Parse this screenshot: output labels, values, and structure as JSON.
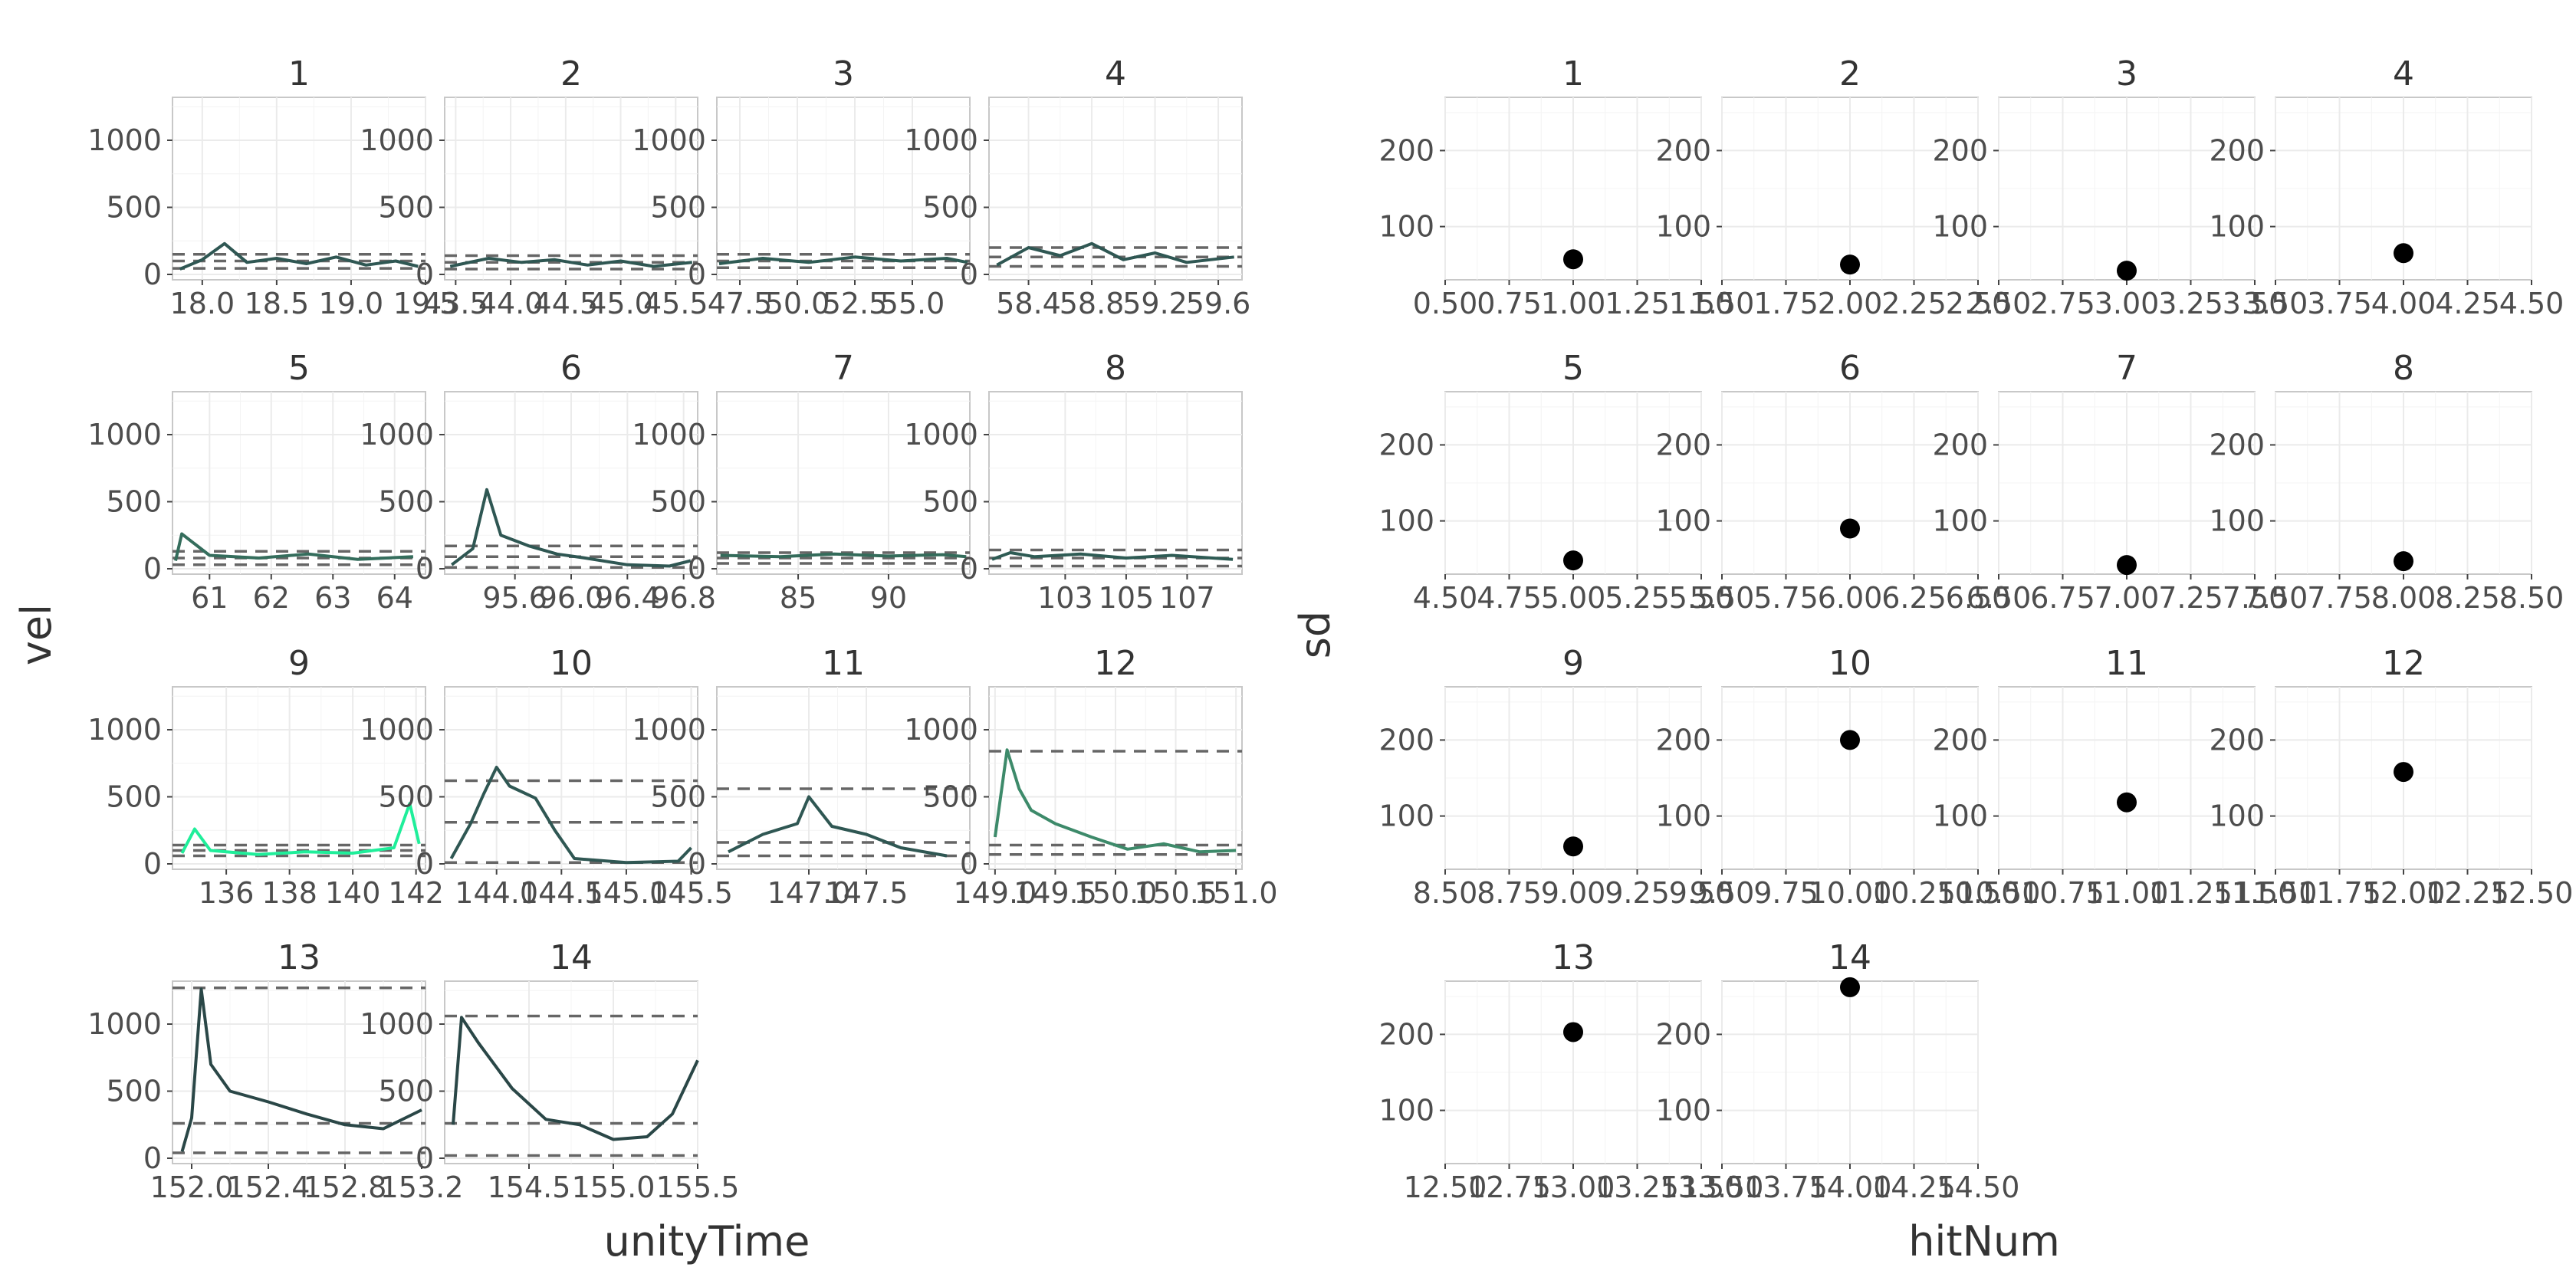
{
  "chart_data": [
    {
      "type": "line",
      "facet_by": "hitNum",
      "xlabel": "unityTime",
      "ylabel": "vel",
      "y_scale": "shared",
      "x_scale": "free",
      "ylim": [
        -40,
        1320
      ],
      "y_ticks": [
        0,
        500,
        1000
      ],
      "reference_lines": "dashed horizontal lines at mean, mean + sd and mean - sd",
      "grid": true,
      "colors": {
        "line_low": "#2a4747",
        "line_high": "#00ff99",
        "reference_line": "#666666"
      },
      "panels": [
        {
          "label": "1",
          "xlim": [
            17.8,
            19.5
          ],
          "x_ticks": [
            18.0,
            18.5,
            19.0,
            19.5
          ],
          "x_tick_labels": [
            "18.0",
            "18.5",
            "19.0",
            "19.5"
          ],
          "hlines": [
            45,
            100,
            150
          ],
          "line_color": "#2f5753",
          "x": [
            17.85,
            18.0,
            18.15,
            18.3,
            18.5,
            18.7,
            18.9,
            19.1,
            19.3,
            19.45
          ],
          "y": [
            40,
            110,
            230,
            90,
            120,
            80,
            130,
            70,
            100,
            60
          ]
        },
        {
          "label": "2",
          "xlim": [
            43.4,
            45.7
          ],
          "x_ticks": [
            43.5,
            44.0,
            44.5,
            45.0,
            45.5
          ],
          "x_tick_labels": [
            "43.5",
            "44.0",
            "44.5",
            "45.0",
            "45.5"
          ],
          "hlines": [
            40,
            90,
            140
          ],
          "line_color": "#2f5753",
          "x": [
            43.45,
            43.8,
            44.1,
            44.4,
            44.7,
            45.0,
            45.3,
            45.65
          ],
          "y": [
            60,
            120,
            90,
            110,
            70,
            100,
            60,
            90
          ]
        },
        {
          "label": "3",
          "xlim": [
            46.5,
            57.5
          ],
          "x_ticks": [
            47.5,
            50.0,
            52.5,
            55.0
          ],
          "x_tick_labels": [
            "47.5",
            "50.0",
            "52.5",
            "55.0"
          ],
          "hlines": [
            50,
            100,
            150
          ],
          "line_color": "#2e5b54",
          "x": [
            46.6,
            48.5,
            50.5,
            52.5,
            54.5,
            56.5,
            57.4
          ],
          "y": [
            80,
            120,
            90,
            130,
            100,
            120,
            90
          ]
        },
        {
          "label": "4",
          "xlim": [
            58.15,
            59.75
          ],
          "x_ticks": [
            58.4,
            58.8,
            59.2,
            59.6
          ],
          "x_tick_labels": [
            "58.4",
            "58.8",
            "59.2",
            "59.6"
          ],
          "hlines": [
            60,
            130,
            200
          ],
          "line_color": "#2f5753",
          "x": [
            58.2,
            58.4,
            58.6,
            58.8,
            59.0,
            59.2,
            59.4,
            59.7
          ],
          "y": [
            70,
            200,
            140,
            230,
            110,
            160,
            90,
            130
          ]
        },
        {
          "label": "5",
          "xlim": [
            60.4,
            64.5
          ],
          "x_ticks": [
            61,
            62,
            63,
            64
          ],
          "x_tick_labels": [
            "61",
            "62",
            "63",
            "64"
          ],
          "hlines": [
            30,
            80,
            130
          ],
          "line_color": "#346d5c",
          "x": [
            60.45,
            60.55,
            61.0,
            61.8,
            62.6,
            63.4,
            64.3
          ],
          "y": [
            60,
            260,
            100,
            80,
            110,
            70,
            90
          ]
        },
        {
          "label": "6",
          "xlim": [
            95.1,
            96.9
          ],
          "x_ticks": [
            95.6,
            96.0,
            96.4,
            96.8
          ],
          "x_tick_labels": [
            "95.6",
            "96.0",
            "96.4",
            "96.8"
          ],
          "hlines": [
            10,
            90,
            170
          ],
          "line_color": "#2f5753",
          "x": [
            95.15,
            95.3,
            95.4,
            95.5,
            95.7,
            95.9,
            96.1,
            96.4,
            96.7,
            96.85
          ],
          "y": [
            30,
            150,
            590,
            250,
            170,
            110,
            80,
            30,
            20,
            60
          ]
        },
        {
          "label": "7",
          "xlim": [
            80.5,
            94.5
          ],
          "x_ticks": [
            85,
            90
          ],
          "x_tick_labels": [
            "85",
            "90"
          ],
          "hlines": [
            40,
            80,
            120
          ],
          "line_color": "#336b5a",
          "x": [
            80.7,
            84.0,
            87.0,
            90.0,
            93.0,
            94.3
          ],
          "y": [
            100,
            90,
            110,
            95,
            105,
            90
          ]
        },
        {
          "label": "8",
          "xlim": [
            100.5,
            108.8
          ],
          "x_ticks": [
            103,
            105,
            107
          ],
          "x_tick_labels": [
            "103",
            "105",
            "107"
          ],
          "hlines": [
            20,
            80,
            140
          ],
          "line_color": "#2e5b54",
          "x": [
            100.6,
            101.2,
            102.0,
            103.5,
            105.0,
            106.5,
            108.5
          ],
          "y": [
            70,
            120,
            90,
            110,
            80,
            100,
            70
          ]
        },
        {
          "label": "9",
          "xlim": [
            134.3,
            142.3
          ],
          "x_ticks": [
            136,
            138,
            140,
            142
          ],
          "x_tick_labels": [
            "136",
            "138",
            "140",
            "142"
          ],
          "hlines": [
            60,
            100,
            140
          ],
          "line_color": "#1fee9a",
          "x": [
            134.6,
            135.0,
            135.5,
            137.0,
            138.5,
            140.0,
            141.3,
            141.8,
            142.1
          ],
          "y": [
            80,
            260,
            100,
            70,
            90,
            80,
            120,
            450,
            150
          ]
        },
        {
          "label": "10",
          "xlim": [
            143.6,
            145.55
          ],
          "x_ticks": [
            144.0,
            144.5,
            145.0,
            145.5
          ],
          "x_tick_labels": [
            "144.0",
            "144.5",
            "145.0",
            "145.5"
          ],
          "hlines": [
            10,
            310,
            620
          ],
          "line_color": "#2f5753",
          "x": [
            143.65,
            143.8,
            143.9,
            144.0,
            144.1,
            144.3,
            144.45,
            144.6,
            145.0,
            145.4,
            145.5
          ],
          "y": [
            40,
            300,
            520,
            720,
            580,
            490,
            250,
            40,
            10,
            20,
            120
          ]
        },
        {
          "label": "11",
          "xlim": [
            146.2,
            148.4
          ],
          "x_ticks": [
            147.0,
            147.5
          ],
          "x_tick_labels": [
            "147.0",
            "147.5"
          ],
          "hlines": [
            60,
            160,
            560
          ],
          "line_color": "#2f5753",
          "x": [
            146.3,
            146.6,
            146.9,
            147.0,
            147.2,
            147.5,
            147.8,
            148.2
          ],
          "y": [
            90,
            220,
            300,
            500,
            280,
            220,
            120,
            60
          ]
        },
        {
          "label": "12",
          "xlim": [
            148.95,
            151.05
          ],
          "x_ticks": [
            149.0,
            149.5,
            150.0,
            150.5,
            151.0
          ],
          "x_tick_labels": [
            "149.0",
            "149.5",
            "150.0",
            "150.5",
            "151.0"
          ],
          "hlines": [
            70,
            140,
            840
          ],
          "line_color": "#3d8a6a",
          "x": [
            149.0,
            149.1,
            149.2,
            149.3,
            149.5,
            149.8,
            150.1,
            150.4,
            150.7,
            151.0
          ],
          "y": [
            200,
            850,
            560,
            400,
            300,
            200,
            110,
            150,
            90,
            100
          ]
        },
        {
          "label": "13",
          "xlim": [
            151.9,
            153.22
          ],
          "x_ticks": [
            152.0,
            152.4,
            152.8,
            153.2
          ],
          "x_tick_labels": [
            "152.0",
            "152.4",
            "152.8",
            "153.2"
          ],
          "hlines": [
            40,
            260,
            1270
          ],
          "line_color": "#2a4747",
          "x": [
            151.95,
            152.0,
            152.05,
            152.1,
            152.2,
            152.4,
            152.6,
            152.8,
            153.0,
            153.2
          ],
          "y": [
            50,
            300,
            1260,
            700,
            500,
            420,
            330,
            250,
            220,
            360
          ]
        },
        {
          "label": "14",
          "xlim": [
            154.0,
            155.5
          ],
          "x_ticks": [
            154.5,
            155.0,
            155.5
          ],
          "x_tick_labels": [
            "154.5",
            "155.0",
            "155.5"
          ],
          "hlines": [
            20,
            260,
            1060
          ],
          "line_color": "#2a4747",
          "x": [
            154.05,
            154.1,
            154.2,
            154.4,
            154.6,
            154.8,
            155.0,
            155.2,
            155.35,
            155.5
          ],
          "y": [
            250,
            1050,
            860,
            520,
            290,
            250,
            140,
            160,
            330,
            730
          ]
        }
      ]
    },
    {
      "type": "scatter",
      "facet_by": "hitNum",
      "xlabel": "hitNum",
      "ylabel": "sd",
      "y_scale": "shared",
      "x_scale": "free",
      "ylim": [
        30,
        270
      ],
      "y_ticks": [
        100,
        200
      ],
      "grid": true,
      "colors": {
        "point": "#000000"
      },
      "panels": [
        {
          "label": "1",
          "x": 1,
          "y": 57,
          "xlim": [
            0.5,
            1.5
          ],
          "x_ticks": [
            0.5,
            0.75,
            1.0,
            1.25,
            1.5
          ],
          "x_tick_labels": [
            "0.50",
            "0.75",
            "1.00",
            "1.25",
            "1.50"
          ]
        },
        {
          "label": "2",
          "x": 2,
          "y": 50,
          "xlim": [
            1.5,
            2.5
          ],
          "x_ticks": [
            1.5,
            1.75,
            2.0,
            2.25,
            2.5
          ],
          "x_tick_labels": [
            "1.50",
            "1.75",
            "2.00",
            "2.25",
            "2.50"
          ]
        },
        {
          "label": "3",
          "x": 3,
          "y": 42,
          "xlim": [
            2.5,
            3.5
          ],
          "x_ticks": [
            2.5,
            2.75,
            3.0,
            3.25,
            3.5
          ],
          "x_tick_labels": [
            "2.50",
            "2.75",
            "3.00",
            "3.25",
            "3.50"
          ]
        },
        {
          "label": "4",
          "x": 4,
          "y": 65,
          "xlim": [
            3.5,
            4.5
          ],
          "x_ticks": [
            3.5,
            3.75,
            4.0,
            4.25,
            4.5
          ],
          "x_tick_labels": [
            "3.50",
            "3.75",
            "4.00",
            "4.25",
            "4.50"
          ]
        },
        {
          "label": "5",
          "x": 5,
          "y": 48,
          "xlim": [
            4.5,
            5.5
          ],
          "x_ticks": [
            4.5,
            4.75,
            5.0,
            5.25,
            5.5
          ],
          "x_tick_labels": [
            "4.50",
            "4.75",
            "5.00",
            "5.25",
            "5.50"
          ]
        },
        {
          "label": "6",
          "x": 6,
          "y": 90,
          "xlim": [
            5.5,
            6.5
          ],
          "x_ticks": [
            5.5,
            5.75,
            6.0,
            6.25,
            6.5
          ],
          "x_tick_labels": [
            "5.50",
            "5.75",
            "6.00",
            "6.25",
            "6.50"
          ]
        },
        {
          "label": "7",
          "x": 7,
          "y": 42,
          "xlim": [
            6.5,
            7.5
          ],
          "x_ticks": [
            6.5,
            6.75,
            7.0,
            7.25,
            7.5
          ],
          "x_tick_labels": [
            "6.50",
            "6.75",
            "7.00",
            "7.25",
            "7.50"
          ]
        },
        {
          "label": "8",
          "x": 8,
          "y": 47,
          "xlim": [
            7.5,
            8.5
          ],
          "x_ticks": [
            7.5,
            7.75,
            8.0,
            8.25,
            8.5
          ],
          "x_tick_labels": [
            "7.50",
            "7.75",
            "8.00",
            "8.25",
            "8.50"
          ]
        },
        {
          "label": "9",
          "x": 9,
          "y": 60,
          "xlim": [
            8.5,
            9.5
          ],
          "x_ticks": [
            8.5,
            8.75,
            9.0,
            9.25,
            9.5
          ],
          "x_tick_labels": [
            "8.50",
            "8.75",
            "9.00",
            "9.25",
            "9.50"
          ]
        },
        {
          "label": "10",
          "x": 10,
          "y": 200,
          "xlim": [
            9.5,
            10.5
          ],
          "x_ticks": [
            9.5,
            9.75,
            10.0,
            10.25,
            10.5
          ],
          "x_tick_labels": [
            "9.50",
            "9.75",
            "10.00",
            "10.25",
            "10.50"
          ]
        },
        {
          "label": "11",
          "x": 11,
          "y": 118,
          "xlim": [
            10.5,
            11.5
          ],
          "x_ticks": [
            10.5,
            10.75,
            11.0,
            11.25,
            11.5
          ],
          "x_tick_labels": [
            "10.50",
            "10.75",
            "11.00",
            "11.25",
            "11.50"
          ]
        },
        {
          "label": "12",
          "x": 12,
          "y": 158,
          "xlim": [
            11.5,
            12.5
          ],
          "x_ticks": [
            11.5,
            11.75,
            12.0,
            12.25,
            12.5
          ],
          "x_tick_labels": [
            "11.50",
            "11.75",
            "12.00",
            "12.25",
            "12.50"
          ]
        },
        {
          "label": "13",
          "x": 13,
          "y": 203,
          "xlim": [
            12.5,
            13.5
          ],
          "x_ticks": [
            12.5,
            12.75,
            13.0,
            13.25,
            13.5
          ],
          "x_tick_labels": [
            "12.50",
            "12.75",
            "13.00",
            "13.25",
            "13.50"
          ]
        },
        {
          "label": "14",
          "x": 14,
          "y": 262,
          "xlim": [
            13.5,
            14.5
          ],
          "x_ticks": [
            13.5,
            13.75,
            14.0,
            14.25,
            14.5
          ],
          "x_tick_labels": [
            "13.50",
            "13.75",
            "14.00",
            "14.25",
            "14.50"
          ]
        }
      ]
    }
  ]
}
